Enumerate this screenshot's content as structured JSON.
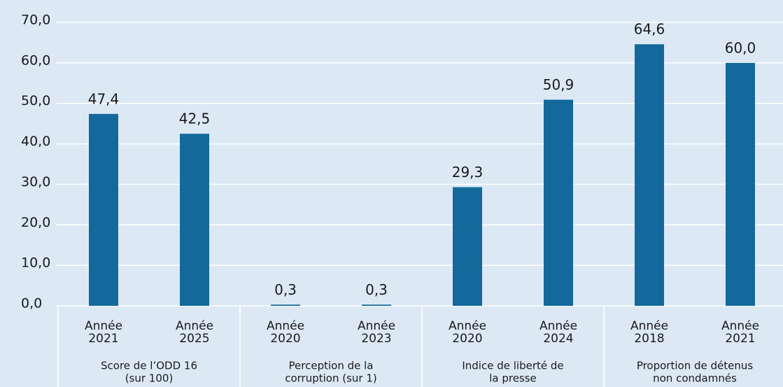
{
  "chart_data": {
    "type": "grouped-bar",
    "color": "#14699c",
    "grid": true,
    "ylim": [
      0,
      70
    ],
    "yticks": [
      {
        "value": 0,
        "label": "0,0"
      },
      {
        "value": 10,
        "label": "10,0"
      },
      {
        "value": 20,
        "label": "20,0"
      },
      {
        "value": 30,
        "label": "30,0"
      },
      {
        "value": 40,
        "label": "40,0"
      },
      {
        "value": 50,
        "label": "50,0"
      },
      {
        "value": 60,
        "label": "60,0"
      },
      {
        "value": 70,
        "label": "70,0"
      }
    ],
    "groups": [
      {
        "label": [
          "Score de l’ODD 16",
          "(sur 100)"
        ],
        "categories": [
          [
            "Année",
            "2021"
          ],
          [
            "Année",
            "2025"
          ]
        ],
        "values": [
          47.4,
          42.5
        ],
        "value_labels": [
          "47,4",
          "42,5"
        ]
      },
      {
        "label": [
          "Perception de la",
          "corruption (sur 1)"
        ],
        "categories": [
          [
            "Année",
            "2020"
          ],
          [
            "Année",
            "2023"
          ]
        ],
        "values": [
          0.3,
          0.3
        ],
        "value_labels": [
          "0,3",
          "0,3"
        ]
      },
      {
        "label": [
          "Indice de liberté de",
          "la presse"
        ],
        "categories": [
          [
            "Année",
            "2020"
          ],
          [
            "Année",
            "2024"
          ]
        ],
        "values": [
          29.3,
          50.9
        ],
        "value_labels": [
          "29,3",
          "50,9"
        ]
      },
      {
        "label": [
          "Proportion de détenus",
          "non condamnés"
        ],
        "categories": [
          [
            "Année",
            "2018"
          ],
          [
            "Année",
            "2021"
          ]
        ],
        "values": [
          64.6,
          60.0
        ],
        "value_labels": [
          "64,6",
          "60,0"
        ]
      }
    ]
  }
}
